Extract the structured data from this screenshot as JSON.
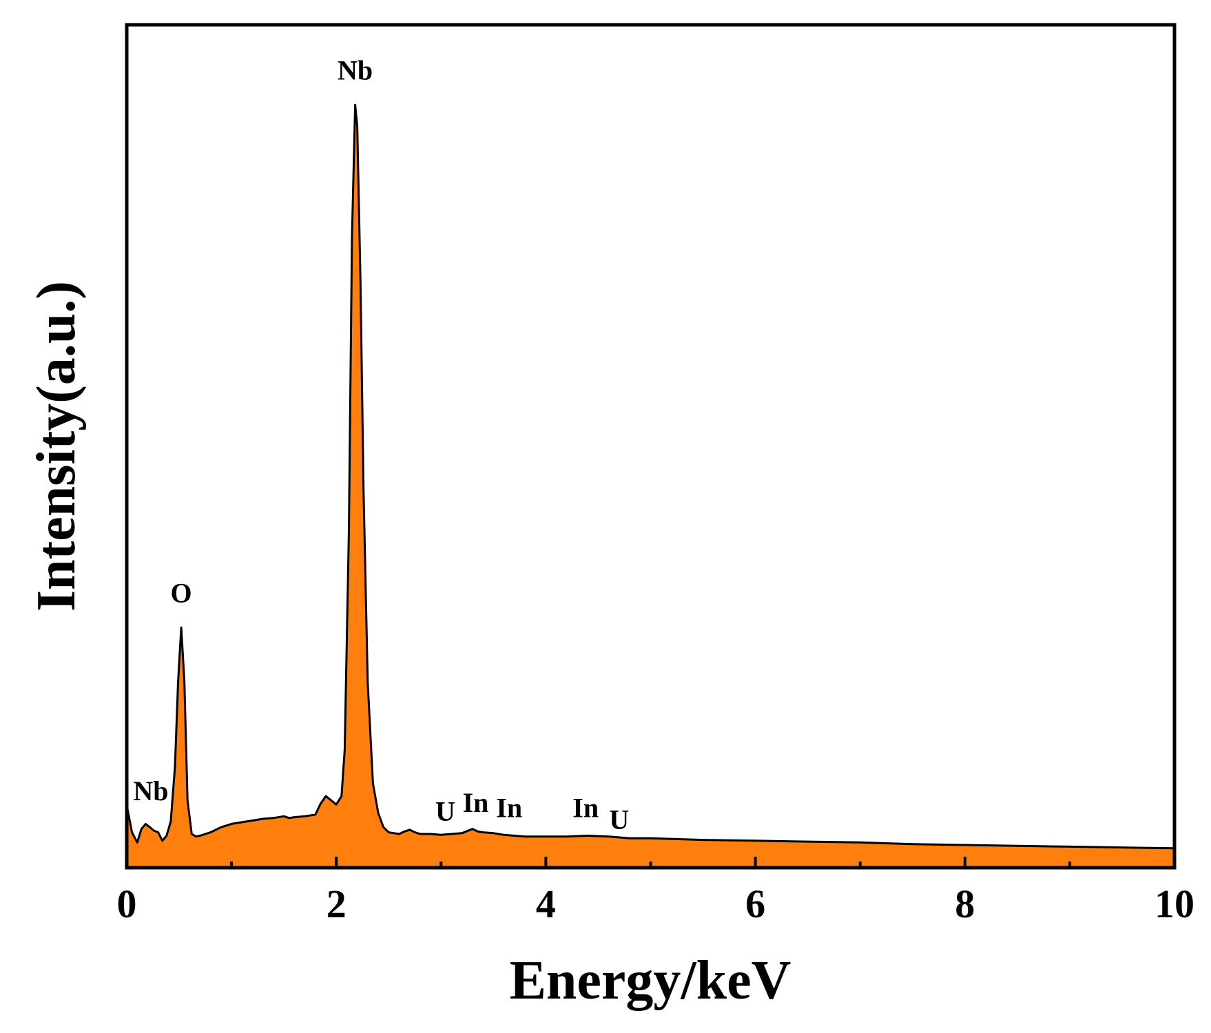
{
  "chart_data": {
    "type": "area",
    "xlabel": "Energy/keV",
    "ylabel": "Intensity(a.u.)",
    "xlim": [
      0,
      10
    ],
    "ylim": [
      0,
      100
    ],
    "x_ticks": [
      "0",
      "2",
      "4",
      "6",
      "8",
      "10"
    ],
    "fill_color": "#FF7F0E",
    "line_color": "#000000",
    "grid": false,
    "legend": "none",
    "series": [
      {
        "x": [
          0,
          0.05,
          0.1,
          0.14,
          0.18,
          0.22,
          0.26,
          0.3,
          0.34,
          0.38,
          0.42,
          0.46,
          0.49,
          0.52,
          0.55,
          0.58,
          0.62,
          0.66,
          0.7,
          0.8,
          0.9,
          1.0,
          1.1,
          1.2,
          1.3,
          1.4,
          1.5,
          1.55,
          1.6,
          1.7,
          1.8,
          1.85,
          1.9,
          1.95,
          2.0,
          2.05,
          2.08,
          2.12,
          2.15,
          2.18,
          2.2,
          2.23,
          2.26,
          2.3,
          2.35,
          2.4,
          2.45,
          2.5,
          2.55,
          2.6,
          2.65,
          2.7,
          2.75,
          2.8,
          2.9,
          3.0,
          3.1,
          3.2,
          3.3,
          3.35,
          3.4,
          3.5,
          3.6,
          3.7,
          3.8,
          3.9,
          4.0,
          4.2,
          4.4,
          4.6,
          4.8,
          5.0,
          5.5,
          6.0,
          6.5,
          7.0,
          7.5,
          8.0,
          8.5,
          9.0,
          9.5,
          10.0
        ],
        "y": [
          7.4,
          4.2,
          3.0,
          4.6,
          5.2,
          4.8,
          4.4,
          4.2,
          3.2,
          3.8,
          5.5,
          12,
          22,
          28.5,
          22,
          8,
          4.0,
          3.7,
          3.8,
          4.2,
          4.8,
          5.2,
          5.4,
          5.6,
          5.8,
          5.9,
          6.1,
          5.9,
          6.0,
          6.1,
          6.3,
          7.6,
          8.5,
          8.0,
          7.5,
          8.5,
          14,
          40,
          75,
          90.5,
          88,
          70,
          45,
          22,
          10,
          6.5,
          4.8,
          4.2,
          4.1,
          4.0,
          4.3,
          4.5,
          4.2,
          4.0,
          4.0,
          3.9,
          4.0,
          4.1,
          4.6,
          4.3,
          4.2,
          4.1,
          3.9,
          3.8,
          3.7,
          3.7,
          3.7,
          3.7,
          3.8,
          3.7,
          3.5,
          3.5,
          3.3,
          3.2,
          3.1,
          3.0,
          2.8,
          2.7,
          2.6,
          2.5,
          2.4,
          2.3
        ]
      }
    ],
    "annotations": [
      {
        "text": "Nb",
        "x": 2.18,
        "y": 93.5
      },
      {
        "text": "O",
        "x": 0.52,
        "y": 31.5
      },
      {
        "text": "Nb",
        "x": 0.23,
        "y": 8.0
      },
      {
        "text": "U",
        "x": 3.04,
        "y": 5.6
      },
      {
        "text": "In",
        "x": 3.33,
        "y": 6.6
      },
      {
        "text": "In",
        "x": 3.65,
        "y": 6.0
      },
      {
        "text": "In",
        "x": 4.38,
        "y": 6.0
      },
      {
        "text": "U",
        "x": 4.7,
        "y": 4.6
      }
    ]
  }
}
